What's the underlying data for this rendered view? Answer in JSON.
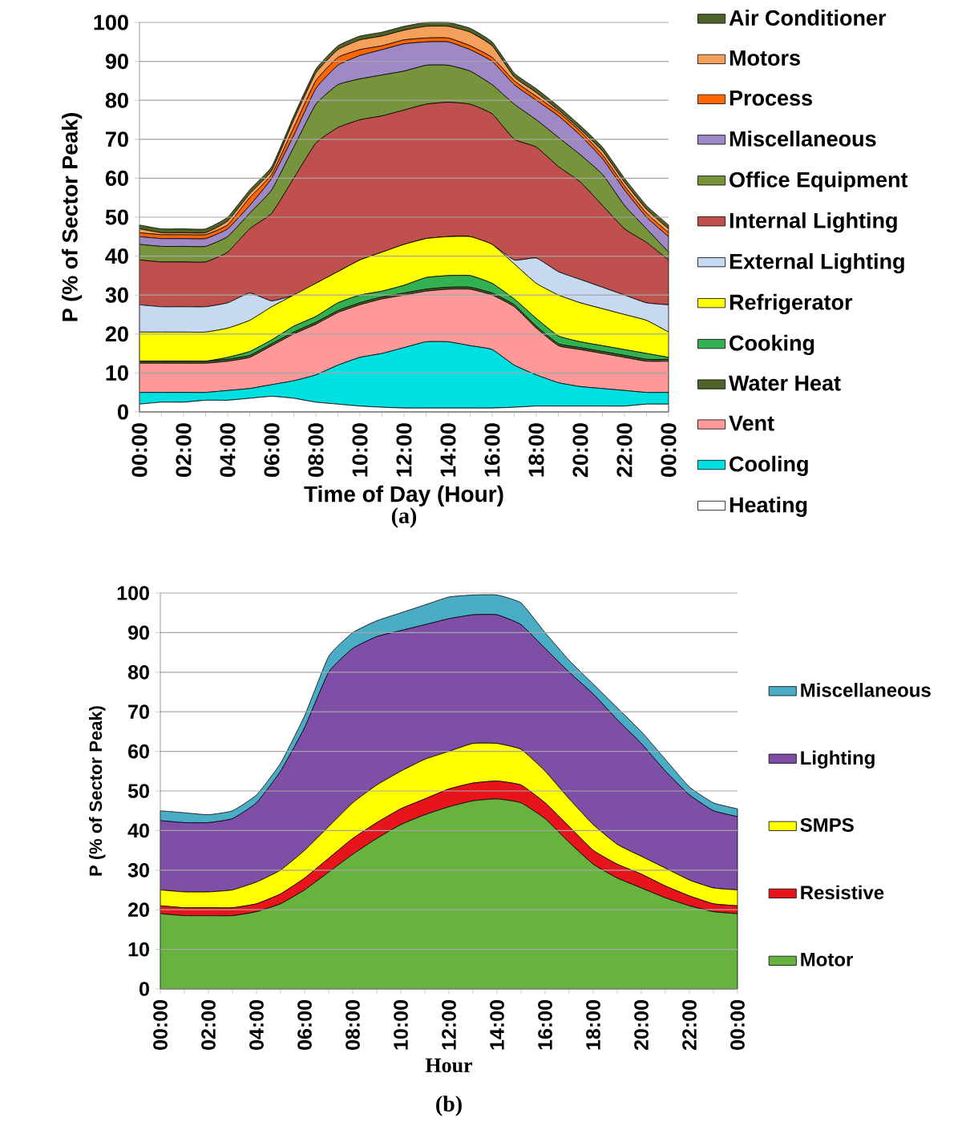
{
  "chart_data": [
    {
      "type": "area",
      "stacked": true,
      "xlabel": "Time of Day (Hour)",
      "ylabel": "P (% of Sector Peak)",
      "annotations": [
        "(a)"
      ],
      "ylim": [
        0,
        100
      ],
      "yticks": [
        0,
        10,
        20,
        30,
        40,
        50,
        60,
        70,
        80,
        90,
        100
      ],
      "grid": "y",
      "legend": "right",
      "categories": [
        "00:00",
        null,
        "02:00",
        null,
        "04:00",
        null,
        "06:00",
        null,
        "08:00",
        null,
        "10:00",
        null,
        "12:00",
        null,
        "14:00",
        null,
        "16:00",
        null,
        "18:00",
        null,
        "20:00",
        null,
        "22:00",
        null,
        "00:00"
      ],
      "series": [
        {
          "name": "Heating",
          "color": "#ffffff",
          "values": [
            2,
            2.5,
            2.5,
            3,
            3,
            3.5,
            4,
            3.5,
            2.5,
            2,
            1.5,
            1.2,
            1,
            1,
            1,
            1,
            1,
            1.2,
            1.5,
            1.5,
            1.5,
            1.5,
            1.5,
            2,
            2
          ]
        },
        {
          "name": "Cooling",
          "color": "#00e0e0",
          "values": [
            3,
            2.5,
            2.5,
            2,
            2.5,
            2.5,
            3,
            4.5,
            7,
            10,
            12.5,
            13.8,
            15.5,
            17,
            17,
            16,
            15,
            10.8,
            8,
            6,
            5,
            4.5,
            4,
            3,
            3
          ]
        },
        {
          "name": "Vent",
          "color": "#ff9999",
          "values": [
            7.5,
            7.5,
            7.5,
            7.5,
            7.5,
            8,
            10,
            12,
            13,
            13.5,
            13.5,
            14,
            13.5,
            13,
            13.5,
            14.5,
            14,
            15,
            12,
            9.5,
            9.5,
            9,
            8.5,
            8,
            8
          ]
        },
        {
          "name": "Water Heat",
          "color": "#4f6228",
          "values": [
            0.5,
            0.5,
            0.5,
            0.5,
            0.5,
            0.5,
            0.5,
            0.5,
            0.5,
            0.5,
            0.5,
            0.5,
            0.5,
            0.5,
            0.5,
            0.5,
            0.5,
            0.5,
            0.5,
            0.5,
            0.5,
            0.5,
            0.5,
            0.5,
            0.5
          ]
        },
        {
          "name": "Cooking",
          "color": "#33b050",
          "values": [
            0,
            0,
            0,
            0,
            0.5,
            1,
            1,
            1.5,
            1.5,
            2,
            2,
            1.5,
            2,
            3,
            3,
            3,
            2.5,
            1.5,
            2,
            2,
            1.5,
            1.5,
            1.5,
            1.5,
            0.5
          ]
        },
        {
          "name": "Refrigerator",
          "color": "#ffff00",
          "values": [
            7.5,
            7.5,
            7.5,
            7.5,
            7.5,
            8,
            8.5,
            8,
            8.5,
            8,
            9,
            10,
            10.5,
            10,
            10,
            10,
            10,
            9,
            9,
            10.5,
            10,
            9.5,
            9,
            8.5,
            6.5
          ]
        },
        {
          "name": "External Lighting",
          "color": "#c6d9f1",
          "values": [
            7,
            6.5,
            6.5,
            6.5,
            6.5,
            7,
            1.5,
            0,
            0,
            0,
            0,
            0,
            0,
            0,
            0,
            0,
            0,
            1,
            6.5,
            6,
            6,
            5.5,
            5,
            4.5,
            7
          ]
        },
        {
          "name": "Internal Lighting",
          "color": "#c0504d",
          "values": [
            11.5,
            11.5,
            11.5,
            11.5,
            13,
            16.5,
            22.5,
            30,
            36,
            37,
            36,
            35,
            34.5,
            34.5,
            34.5,
            34,
            33.5,
            31,
            28.5,
            27,
            25,
            21,
            17,
            15.5,
            11.5
          ]
        },
        {
          "name": "Office Equipment",
          "color": "#77933c",
          "values": [
            4,
            4,
            4,
            4,
            4,
            4,
            6,
            8,
            10,
            11,
            10.5,
            10.5,
            10,
            10,
            9.5,
            8.5,
            7.5,
            9,
            7,
            7.5,
            7,
            8,
            6,
            3.5,
            2
          ]
        },
        {
          "name": "Miscellaneous",
          "color": "#9f88c6",
          "values": [
            2,
            2,
            2,
            2,
            2,
            2,
            3,
            3,
            4,
            5,
            6,
            6.5,
            7,
            6,
            6,
            5.5,
            6,
            5,
            5,
            5.5,
            5,
            4,
            4,
            3,
            4
          ]
        },
        {
          "name": "Process",
          "color": "#ff6600",
          "values": [
            1,
            1,
            1,
            1,
            1,
            2,
            1,
            2,
            2,
            2,
            1.5,
            1,
            1,
            1,
            1,
            1,
            1,
            1,
            1,
            1,
            1,
            1,
            1,
            1,
            1
          ]
        },
        {
          "name": "Motors",
          "color": "#f5a05a",
          "values": [
            1,
            0.5,
            0.5,
            0.5,
            1,
            1,
            1,
            2,
            2,
            2,
            2.5,
            2.5,
            2.5,
            3,
            3,
            3.5,
            3,
            1,
            1,
            0.5,
            0.5,
            1,
            1,
            1,
            1
          ]
        },
        {
          "name": "Air Conditioner",
          "color": "#4f6228",
          "values": [
            1,
            1,
            1,
            1,
            1,
            1,
            1,
            1,
            1,
            1,
            1,
            1,
            1,
            1,
            1,
            1,
            1,
            1,
            1,
            1,
            1,
            1,
            1,
            1,
            1
          ]
        }
      ]
    },
    {
      "type": "area",
      "stacked": true,
      "xlabel": "Hour",
      "ylabel": "P (% of Sector Peak)",
      "annotations": [
        "(b)"
      ],
      "ylim": [
        0,
        100
      ],
      "yticks": [
        0,
        10,
        20,
        30,
        40,
        50,
        60,
        70,
        80,
        90,
        100
      ],
      "grid": "y",
      "legend": "right",
      "categories": [
        "00:00",
        null,
        "02:00",
        null,
        "04:00",
        null,
        "06:00",
        null,
        "08:00",
        null,
        "10:00",
        null,
        "12:00",
        null,
        "14:00",
        null,
        "16:00",
        null,
        "18:00",
        null,
        "20:00",
        null,
        "22:00",
        null,
        "00:00"
      ],
      "series": [
        {
          "name": "Motor",
          "color": "#66b33e",
          "values": [
            19,
            18.5,
            18.5,
            18.5,
            19.5,
            21.5,
            25,
            29.5,
            34,
            38,
            41.5,
            44,
            46,
            47.5,
            48,
            47,
            43,
            37,
            31.5,
            28,
            25.5,
            23,
            21,
            19.5,
            19
          ]
        },
        {
          "name": "Resistive",
          "color": "#e8141c",
          "values": [
            2,
            2,
            2,
            2,
            2,
            2.5,
            3,
            3.5,
            4,
            4,
            4,
            4,
            4.5,
            4.5,
            4.5,
            4.5,
            4,
            4,
            3.5,
            3.5,
            3.5,
            3,
            2.5,
            2,
            2
          ]
        },
        {
          "name": "SMPS",
          "color": "#ffff00",
          "values": [
            4,
            4,
            4,
            4.5,
            5.5,
            6,
            7,
            8,
            9,
            9.5,
            9.5,
            10,
            9.5,
            10,
            9.5,
            9,
            8,
            7,
            6.5,
            5,
            4.5,
            4.5,
            4,
            4,
            4
          ]
        },
        {
          "name": "Lighting",
          "color": "#7f4fa8",
          "values": [
            17.5,
            17.5,
            17.5,
            18,
            20,
            25,
            31,
            39,
            39,
            37.5,
            35.5,
            34,
            33.5,
            32.5,
            32.5,
            31.5,
            31,
            32,
            33,
            31.5,
            28.5,
            24.5,
            21.5,
            19.5,
            18.5
          ]
        },
        {
          "name": "Miscellaneous",
          "color": "#4bacc6",
          "values": [
            2.5,
            2.5,
            2,
            2,
            2,
            2,
            3,
            4,
            4,
            4,
            4.5,
            5,
            5.5,
            5,
            5,
            5.5,
            4,
            3,
            2.5,
            3,
            3,
            3,
            2,
            2,
            2
          ]
        }
      ]
    }
  ]
}
